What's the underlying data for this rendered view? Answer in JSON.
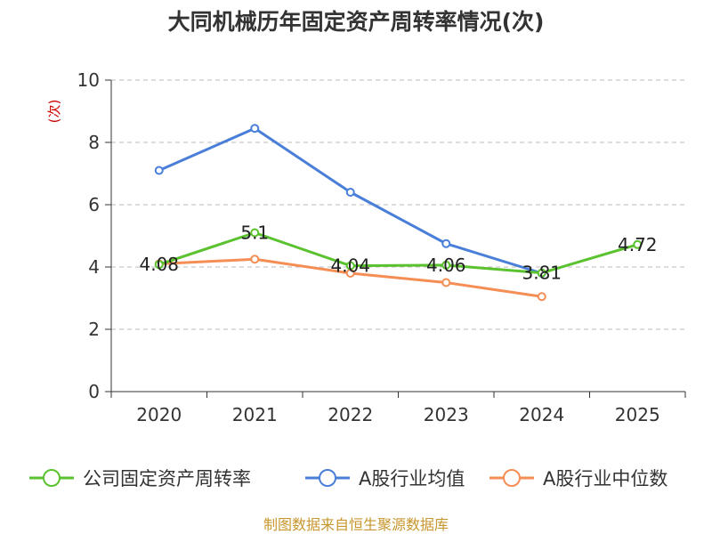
{
  "chart_data": {
    "type": "line",
    "title": "大同机械历年固定资产周转率情况(次)",
    "ylabel": "(次)",
    "xlabel": "",
    "categories": [
      "2020",
      "2021",
      "2022",
      "2023",
      "2024",
      "2025"
    ],
    "ylim": [
      0,
      10
    ],
    "yticks": [
      0,
      2,
      4,
      6,
      8,
      10
    ],
    "grid": "horizontal-dashed",
    "legend_position": "bottom",
    "series": [
      {
        "name": "公司固定资产周转率",
        "color": "#5ac22e",
        "values": [
          4.08,
          5.1,
          4.04,
          4.06,
          3.81,
          4.72
        ],
        "labels": [
          "4.08",
          "5.1",
          "4.04",
          "4.06",
          "3.81",
          "4.72"
        ]
      },
      {
        "name": "A股行业均值",
        "color": "#4a7fd9",
        "values": [
          7.1,
          8.45,
          6.4,
          4.75,
          3.8,
          null
        ]
      },
      {
        "name": "A股行业中位数",
        "color": "#f58e55",
        "values": [
          4.1,
          4.25,
          3.8,
          3.5,
          3.05,
          null
        ]
      }
    ]
  },
  "footer": {
    "source": "制图数据来自恒生聚源数据库"
  }
}
